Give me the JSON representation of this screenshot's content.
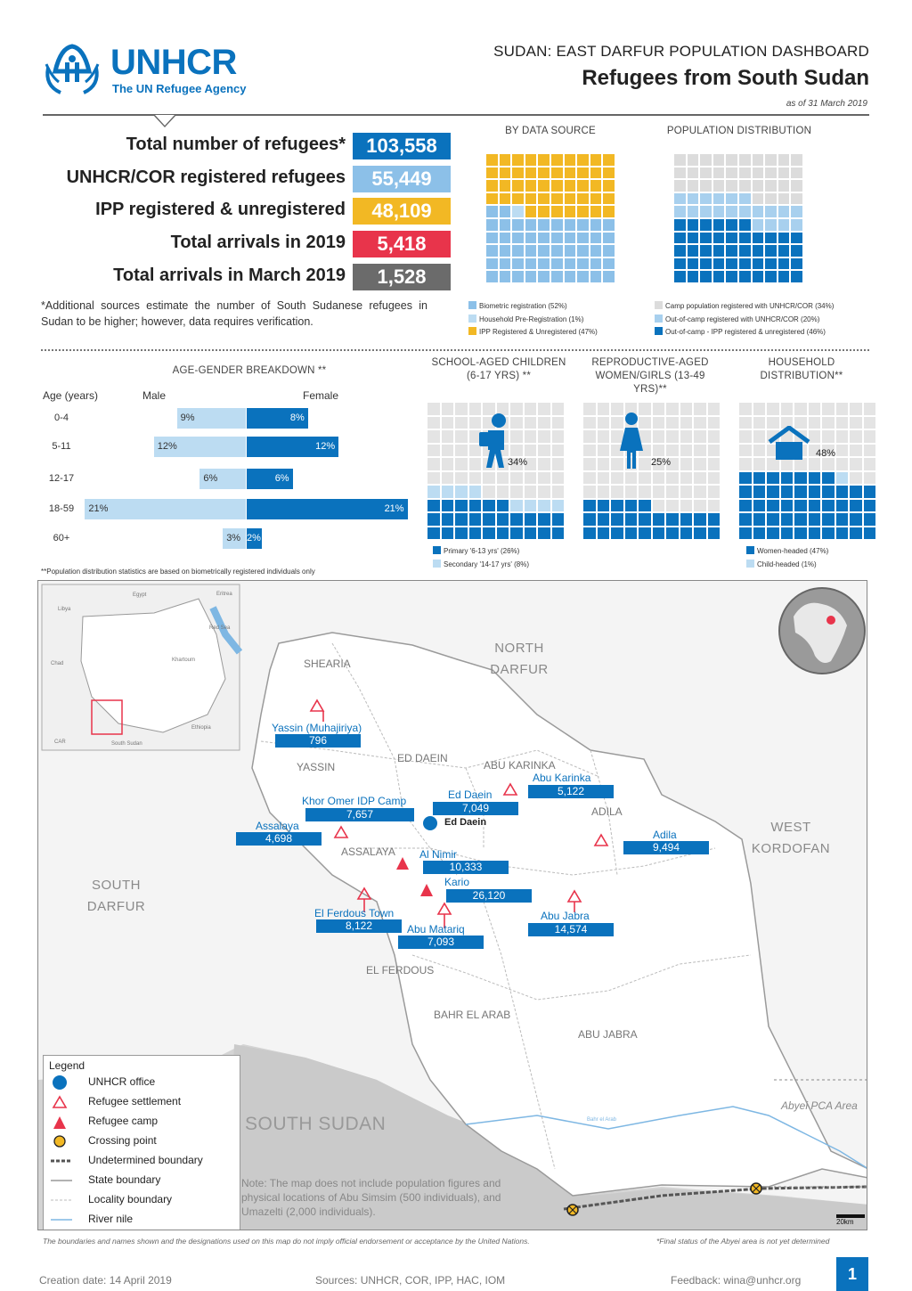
{
  "header": {
    "logo_word": "UNHCR",
    "logo_sub": "The UN Refugee Agency",
    "kicker": "SUDAN: EAST DARFUR POPULATION DASHBOARD",
    "title": "Refugees from South Sudan",
    "date": "as of 31 March 2019"
  },
  "stats": [
    {
      "label": "Total number of refugees*",
      "value": "103,558",
      "color": "#0a72bd"
    },
    {
      "label": "UNHCR/COR registered refugees",
      "value": "55,449",
      "color": "#8cc0e8"
    },
    {
      "label": "IPP registered & unregistered",
      "value": "48,109",
      "color": "#f2b824"
    },
    {
      "label": "Total arrivals in 2019",
      "value": "5,418",
      "color": "#e8344b"
    },
    {
      "label": "Total arrivals in March 2019",
      "value": "1,528",
      "color": "#6b6b6b"
    }
  ],
  "stat_note": "*Additional sources estimate the number of South Sudanese refugees in Sudan to be higher; however, data requires verification.",
  "by_source": {
    "title": "BY DATA SOURCE",
    "legend": [
      {
        "label": "Biometric registration (52%)",
        "color": "#8cc0e8",
        "pct": 52
      },
      {
        "label": "Household Pre-Registration (1%)",
        "color": "#bcdcf2",
        "pct": 1
      },
      {
        "label": "IPP Registered & Unregistered (47%)",
        "color": "#f2b824",
        "pct": 47
      }
    ]
  },
  "pop_dist": {
    "title": "POPULATION DISTRIBUTION",
    "legend": [
      {
        "label": "Camp population registered with UNHCR/COR (34%)",
        "color": "#dcdcdc",
        "pct": 34
      },
      {
        "label": "Out-of-camp registered with UNHCR/COR (20%)",
        "color": "#a8d0ee",
        "pct": 20
      },
      {
        "label": "Out-of-camp - IPP registered & unregistered (46%)",
        "color": "#0a72bd",
        "pct": 46
      }
    ]
  },
  "age_gender": {
    "title": "AGE-GENDER BREAKDOWN **",
    "col_age": "Age (years)",
    "col_male": "Male",
    "col_female": "Female",
    "rows": [
      {
        "age": "0-4",
        "male": 9,
        "female": 8,
        "male_label": "9%",
        "female_label": "8%"
      },
      {
        "age": "5-11",
        "male": 12,
        "female": 12,
        "male_label": "12%",
        "female_label": "12%"
      },
      {
        "age": "12-17",
        "male": 6,
        "female": 6,
        "male_label": "6%",
        "female_label": "6%"
      },
      {
        "age": "18-59",
        "male": 21,
        "female": 21,
        "male_label": "21%",
        "female_label": "21%"
      },
      {
        "age": "60+",
        "male": 3,
        "female": 2,
        "male_label": "3%",
        "female_label": "2%"
      }
    ],
    "footnote": "**Population distribution statistics are based on biometrically registered individuals only"
  },
  "school": {
    "title": "SCHOOL-AGED CHILDREN (6-17 YRS) **",
    "pct_label": "34%",
    "primary_pct": 26,
    "secondary_pct": 8,
    "legend": [
      {
        "label": "Primary '6-13 yrs' (26%)",
        "color": "#0a72bd"
      },
      {
        "label": "Secondary '14-17 yrs' (8%)",
        "color": "#bcdcf2"
      }
    ]
  },
  "repro": {
    "title": "REPRODUCTIVE-AGED WOMEN/GIRLS (13-49 YRS)**",
    "pct_label": "25%",
    "pct": 25
  },
  "household": {
    "title": "HOUSEHOLD DISTRIBUTION**",
    "pct_label": "48%",
    "women_pct": 47,
    "child_pct": 1,
    "legend": [
      {
        "label": "Women-headed (47%)",
        "color": "#0a72bd"
      },
      {
        "label": "Child-headed (1%)",
        "color": "#bcdcf2"
      }
    ]
  },
  "map": {
    "regions": {
      "north_darfur": "NORTH DARFUR",
      "west_kordofan": "WEST KORDOFAN",
      "south_darfur": "SOUTH DARFUR",
      "south_sudan": "SOUTH SUDAN"
    },
    "localities": [
      "SHEARIA",
      "YASSIN",
      "ED DAEIN",
      "ABU KARINKA",
      "ADILA",
      "ASSALAYA",
      "EL FERDOUS",
      "BAHR EL ARAB",
      "ABU JABRA"
    ],
    "office_label": "Ed Daein",
    "sites": [
      {
        "name": "Yassin (Muhajiriya)",
        "value": "796"
      },
      {
        "name": "Khor Omer IDP Camp",
        "value": "7,657"
      },
      {
        "name": "Ed Daein",
        "value": "7,049"
      },
      {
        "name": "Abu Karinka",
        "value": "5,122"
      },
      {
        "name": "Assalaya",
        "value": "4,698"
      },
      {
        "name": "Adila",
        "value": "9,494"
      },
      {
        "name": "Al Nimir",
        "value": "10,333"
      },
      {
        "name": "Kario",
        "value": "26,120"
      },
      {
        "name": "El Ferdous Town",
        "value": "8,122"
      },
      {
        "name": "Abu Jabra",
        "value": "14,574"
      },
      {
        "name": "Abu Matariq",
        "value": "7,093"
      }
    ],
    "abyei": "Abyei PCA Area",
    "river": "Bahr el Arab",
    "scale": "20km",
    "note": "Note: The map does not include population figures and physical locations of Abu Simsim (500 individuals), and Umazelti (2,000 individuals).",
    "inset_labels": [
      "Egypt",
      "Libya",
      "Chad",
      "Eritrea",
      "Ethiopia",
      "CAR",
      "South Sudan",
      "Red Sea",
      "Khartoum"
    ],
    "legend": {
      "title": "Legend",
      "items": [
        "UNHCR office",
        "Refugee settlement",
        "Refugee camp",
        "Crossing point",
        "Undetermined boundary",
        "State boundary",
        "Locality boundary",
        "River nile"
      ]
    }
  },
  "footer": {
    "disclaimer": "The boundaries and names shown and the designations used on this map do not imply official endorsement or acceptance by the United Nations.",
    "abyei_note": "*Final status of the Abyei area is not yet determined",
    "creation": "Creation date: 14 April 2019",
    "sources": "Sources: UNHCR, COR, IPP, HAC, IOM",
    "feedback": "Feedback: wina@unhcr.org",
    "page": "1"
  }
}
